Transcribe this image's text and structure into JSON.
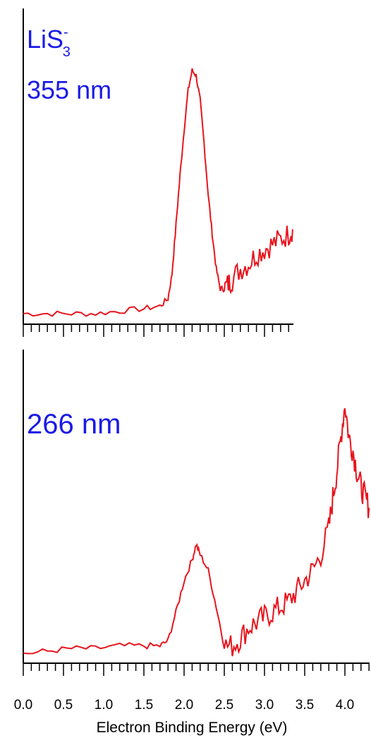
{
  "chart_data": {
    "type": "line",
    "xlabel": "Electron Binding Energy (eV)",
    "species": {
      "base": "LiS",
      "subscript": "3",
      "superscript": "-"
    },
    "x_ticks": [
      "0.0",
      "0.5",
      "1.0",
      "1.5",
      "2.0",
      "2.5",
      "3.0",
      "3.5",
      "4.0"
    ],
    "colors": {
      "trace": "#e8141c",
      "label": "#1a1ae6",
      "axis": "#000000"
    },
    "panels": [
      {
        "label": "355 nm",
        "xlim": [
          0.0,
          3.35
        ],
        "x": [
          0.0,
          0.3,
          0.6,
          0.9,
          1.2,
          1.5,
          1.7,
          1.8,
          1.85,
          1.9,
          1.95,
          2.0,
          2.05,
          2.1,
          2.15,
          2.2,
          2.25,
          2.3,
          2.35,
          2.4,
          2.45,
          2.5,
          2.55,
          2.6,
          2.7,
          2.8,
          2.9,
          3.0,
          3.1,
          3.2,
          3.3,
          3.35
        ],
        "y": [
          0.02,
          0.02,
          0.02,
          0.02,
          0.03,
          0.04,
          0.05,
          0.08,
          0.18,
          0.38,
          0.58,
          0.76,
          0.92,
          1.0,
          0.98,
          0.88,
          0.7,
          0.5,
          0.34,
          0.2,
          0.12,
          0.12,
          0.14,
          0.16,
          0.2,
          0.22,
          0.26,
          0.28,
          0.3,
          0.32,
          0.34,
          0.36
        ]
      },
      {
        "label": "266 nm",
        "xlim": [
          0.0,
          4.3
        ],
        "x": [
          0.0,
          0.3,
          0.6,
          0.9,
          1.2,
          1.5,
          1.7,
          1.8,
          1.9,
          2.0,
          2.1,
          2.15,
          2.2,
          2.3,
          2.4,
          2.5,
          2.6,
          2.7,
          2.8,
          2.9,
          3.0,
          3.1,
          3.2,
          3.3,
          3.4,
          3.5,
          3.6,
          3.7,
          3.8,
          3.85,
          3.9,
          3.95,
          4.0,
          4.05,
          4.1,
          4.15,
          4.2,
          4.25,
          4.3
        ],
        "y": [
          0.02,
          0.03,
          0.04,
          0.04,
          0.05,
          0.05,
          0.05,
          0.07,
          0.18,
          0.3,
          0.38,
          0.44,
          0.4,
          0.34,
          0.2,
          0.05,
          0.05,
          0.08,
          0.12,
          0.14,
          0.16,
          0.18,
          0.2,
          0.22,
          0.26,
          0.3,
          0.34,
          0.4,
          0.5,
          0.62,
          0.72,
          0.85,
          0.98,
          0.85,
          0.8,
          0.72,
          0.66,
          0.62,
          0.58
        ]
      }
    ]
  }
}
